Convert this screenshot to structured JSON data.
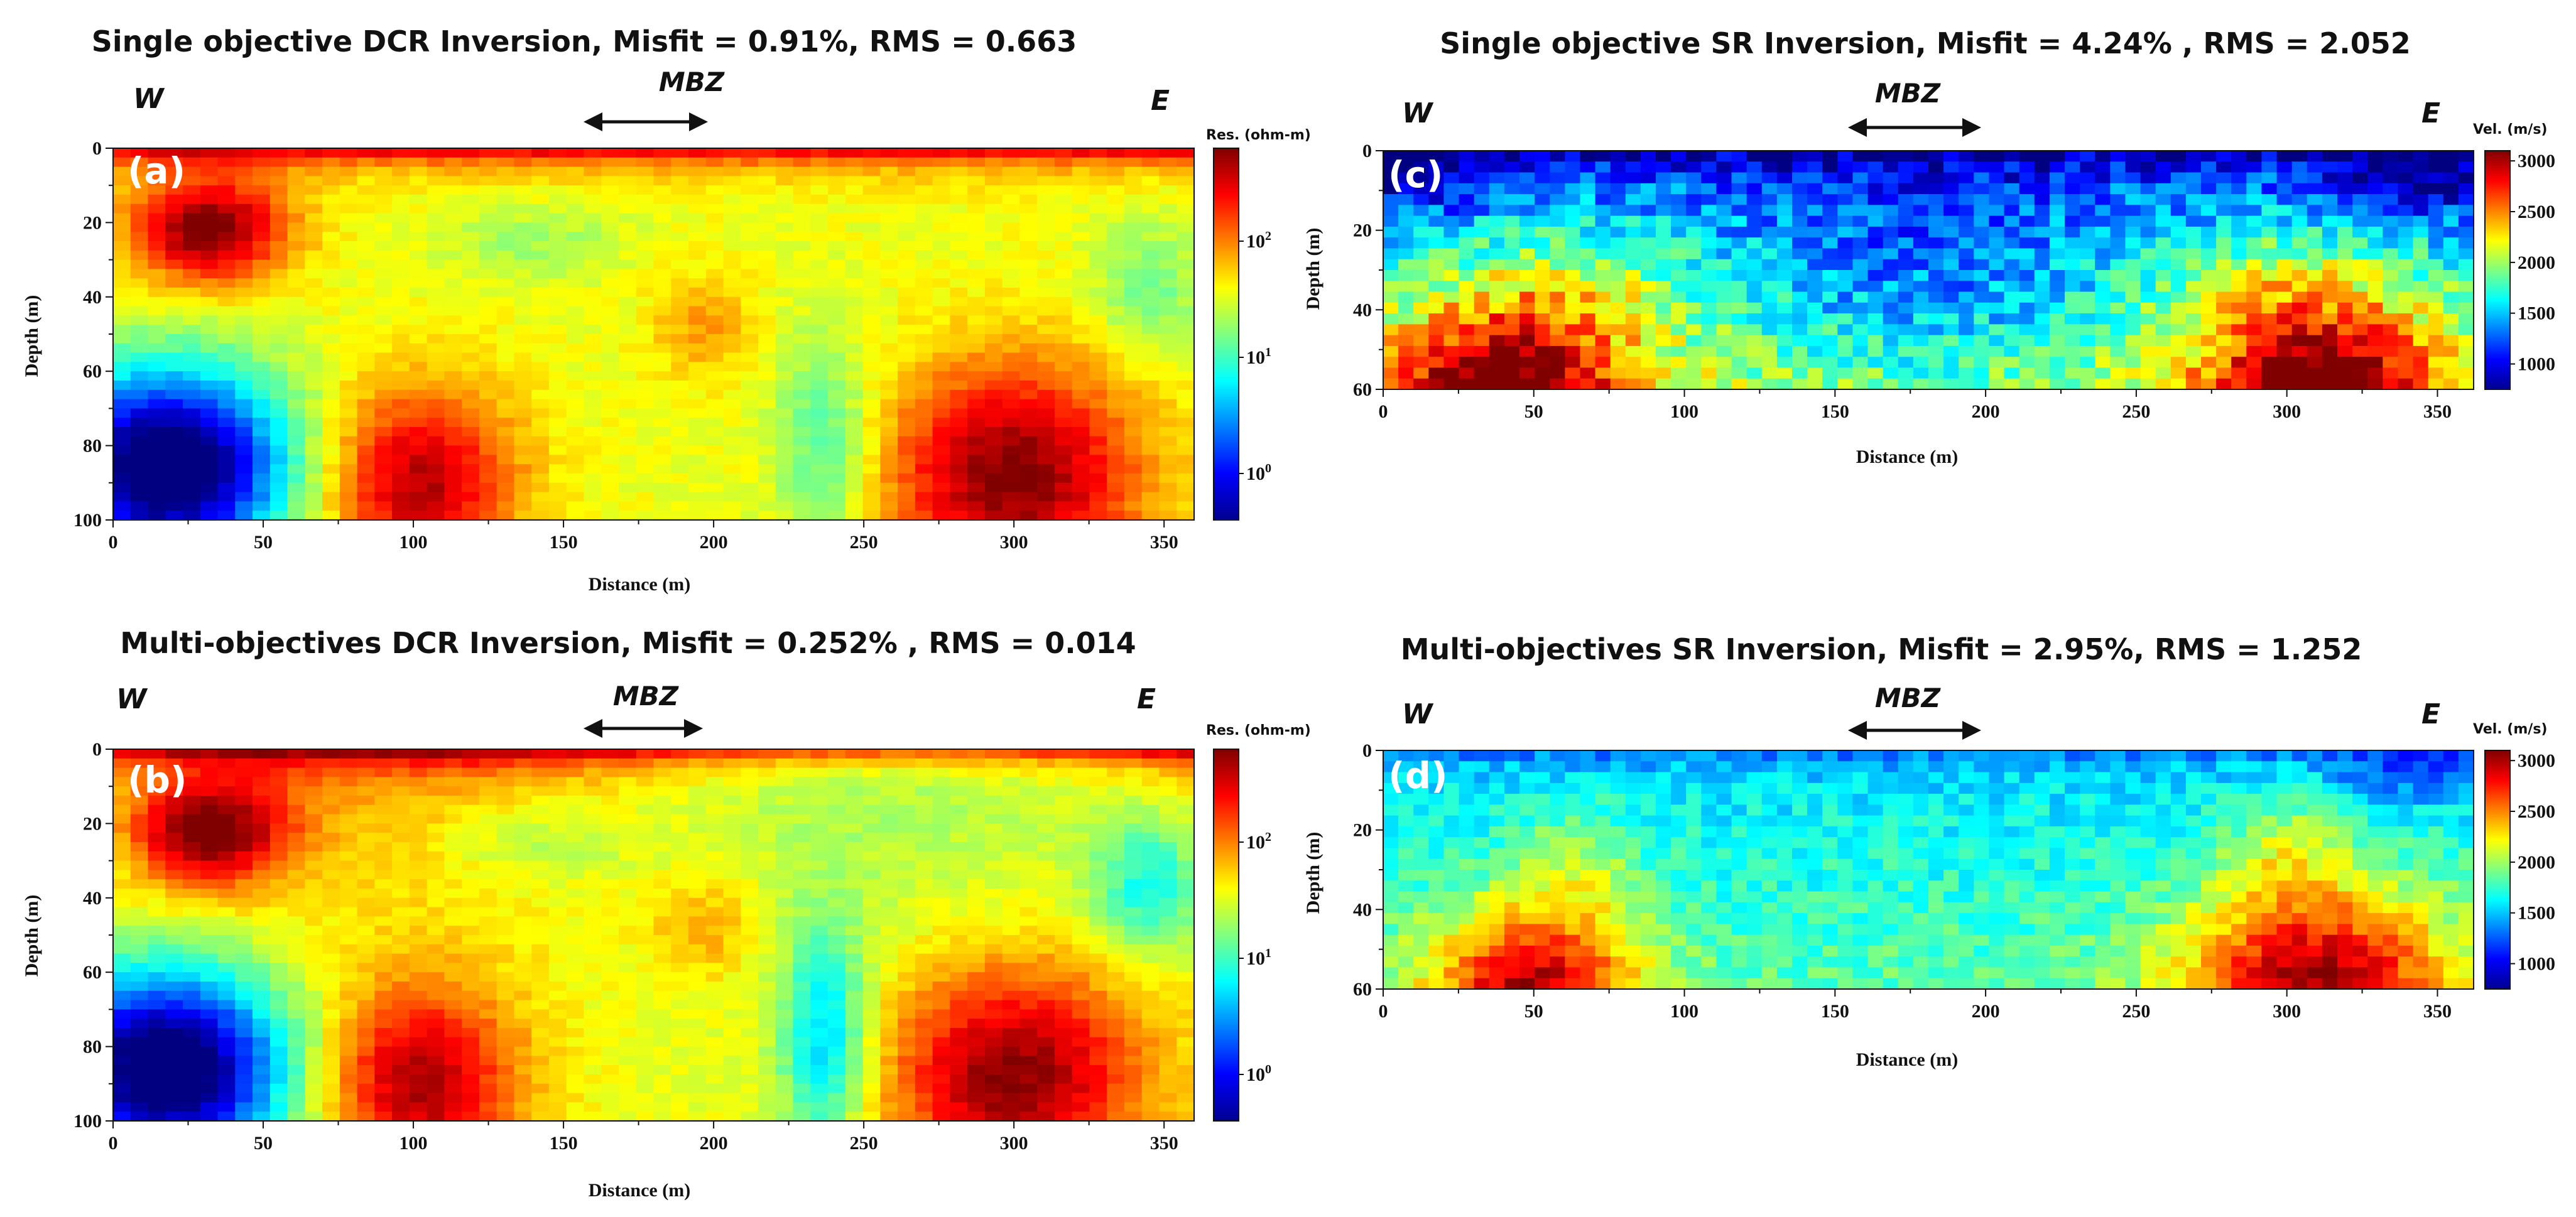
{
  "chart_data": [
    {
      "id": "a",
      "type": "heatmap",
      "title": "Single objective DCR Inversion, Misfit = 0.91%, RMS = 0.663",
      "panel_label": "(a)",
      "west_label": "W",
      "east_label": "E",
      "marker_label": "MBZ",
      "marker_range": [
        157,
        193
      ],
      "xlabel": "Distance (m)",
      "ylabel": "Depth (m)",
      "xlim": [
        0,
        360
      ],
      "ylim": [
        0,
        100
      ],
      "xticks": [
        "0",
        "50",
        "100",
        "150",
        "200",
        "250",
        "300",
        "350"
      ],
      "yticks": [
        "0",
        "20",
        "40",
        "60",
        "80",
        "100"
      ],
      "colorbar_title": "Res. (ohm-m)",
      "colorbar_ticks": [
        {
          "label": "10",
          "exp": "2",
          "value": 2
        },
        {
          "label": "10",
          "exp": "1",
          "value": 1
        },
        {
          "label": "10",
          "exp": "0",
          "value": 0
        }
      ],
      "colorbar_range": [
        -0.4,
        2.8
      ],
      "scale": "log10 resistivity",
      "features": [
        {
          "name": "shallow conductive-resistive cap",
          "x": [
            0,
            360
          ],
          "depth": [
            0,
            6
          ],
          "value": 2.6
        },
        {
          "name": "shallow resistor west",
          "x": [
            30,
            30
          ],
          "depth": [
            22,
            22
          ],
          "value": 2.8
        },
        {
          "name": "deep conductor west",
          "x": [
            20,
            20
          ],
          "depth": [
            85,
            85
          ],
          "value": -0.4
        },
        {
          "name": "deep resistor",
          "x": [
            100,
            100
          ],
          "depth": [
            88,
            88
          ],
          "value": 2.6
        },
        {
          "name": "deep resistor",
          "x": [
            300,
            300
          ],
          "depth": [
            88,
            88
          ],
          "value": 2.8
        },
        {
          "name": "moderate body under MBZ",
          "x": [
            195,
            195
          ],
          "depth": [
            50,
            50
          ],
          "value": 1.9
        },
        {
          "name": "low zone",
          "x": [
            235,
            235
          ],
          "depth": [
            80,
            80
          ],
          "value": 0.9
        }
      ]
    },
    {
      "id": "b",
      "type": "heatmap",
      "title": "Multi-objectives DCR Inversion, Misfit = 0.252% , RMS = 0.014",
      "panel_label": "(b)",
      "west_label": "W",
      "east_label": "E",
      "marker_label": "MBZ",
      "marker_range": [
        157,
        193
      ],
      "xlabel": "Distance (m)",
      "ylabel": "Depth (m)",
      "xlim": [
        0,
        360
      ],
      "ylim": [
        0,
        100
      ],
      "xticks": [
        "0",
        "50",
        "100",
        "150",
        "200",
        "250",
        "300",
        "350"
      ],
      "yticks": [
        "0",
        "20",
        "40",
        "60",
        "80",
        "100"
      ],
      "colorbar_title": "Res. (ohm-m)",
      "colorbar_ticks": [
        {
          "label": "10",
          "exp": "2",
          "value": 2
        },
        {
          "label": "10",
          "exp": "1",
          "value": 1
        },
        {
          "label": "10",
          "exp": "0",
          "value": 0
        }
      ],
      "colorbar_range": [
        -0.4,
        2.8
      ],
      "scale": "log10 resistivity",
      "features": [
        {
          "name": "shallow cap",
          "x": [
            0,
            360
          ],
          "depth": [
            0,
            6
          ],
          "value": 2.6
        },
        {
          "name": "shallow resistor west",
          "x": [
            32,
            32
          ],
          "depth": [
            20,
            20
          ],
          "value": 2.9
        },
        {
          "name": "deep conductor west",
          "x": [
            22,
            22
          ],
          "depth": [
            82,
            82
          ],
          "value": -0.5
        },
        {
          "name": "deep resistor",
          "x": [
            105,
            105
          ],
          "depth": [
            85,
            85
          ],
          "value": 2.6
        },
        {
          "name": "deep resistor",
          "x": [
            300,
            300
          ],
          "depth": [
            85,
            85
          ],
          "value": 2.9
        },
        {
          "name": "moderate body under MBZ",
          "x": [
            200,
            200
          ],
          "depth": [
            48,
            48
          ],
          "value": 1.8
        },
        {
          "name": "low zone",
          "x": [
            237,
            237
          ],
          "depth": [
            80,
            80
          ],
          "value": 0.6
        },
        {
          "name": "low zone east",
          "x": [
            340,
            340
          ],
          "depth": [
            35,
            35
          ],
          "value": 0.7
        }
      ]
    },
    {
      "id": "c",
      "type": "heatmap",
      "title": "Single objective SR Inversion, Misfit = 4.24% , RMS = 2.052",
      "panel_label": "(c)",
      "west_label": "W",
      "east_label": "E",
      "marker_label": "MBZ",
      "marker_range": [
        157,
        193
      ],
      "xlabel": "Distance (m)",
      "ylabel": "Depth (m)",
      "xlim": [
        0,
        362
      ],
      "ylim": [
        0,
        60
      ],
      "xticks": [
        "0",
        "50",
        "100",
        "150",
        "200",
        "250",
        "300",
        "350"
      ],
      "yticks": [
        "0",
        "20",
        "40",
        "60"
      ],
      "colorbar_title": "Vel. (m/s)",
      "colorbar_ticks": [
        {
          "label": "3000",
          "value": 3000
        },
        {
          "label": "2500",
          "value": 2500
        },
        {
          "label": "2000",
          "value": 2000
        },
        {
          "label": "1500",
          "value": 1500
        },
        {
          "label": "1000",
          "value": 1000
        }
      ],
      "colorbar_range": [
        750,
        3100
      ],
      "scale": "P-wave velocity (m/s)",
      "features": [
        {
          "name": "low-velocity near surface",
          "x": [
            0,
            362
          ],
          "depth": [
            0,
            8
          ],
          "value": 900
        },
        {
          "name": "high velocity west",
          "x": [
            40,
            40
          ],
          "depth": [
            55,
            55
          ],
          "value": 2900
        },
        {
          "name": "high velocity east",
          "x": [
            310,
            310
          ],
          "depth": [
            55,
            55
          ],
          "value": 2950
        },
        {
          "name": "low-velocity MBZ zone",
          "x": [
            180,
            180
          ],
          "depth": [
            35,
            35
          ],
          "value": 1150
        }
      ]
    },
    {
      "id": "d",
      "type": "heatmap",
      "title": "Multi-objectives SR Inversion, Misfit = 2.95%, RMS = 1.252",
      "panel_label": "(d)",
      "west_label": "W",
      "east_label": "E",
      "marker_label": "MBZ",
      "marker_range": [
        157,
        193
      ],
      "xlabel": "Distance (m)",
      "ylabel": "Depth (m)",
      "xlim": [
        0,
        362
      ],
      "ylim": [
        0,
        60
      ],
      "xticks": [
        "0",
        "50",
        "100",
        "150",
        "200",
        "250",
        "300",
        "350"
      ],
      "yticks": [
        "0",
        "20",
        "40",
        "60"
      ],
      "colorbar_title": "Vel. (m/s)",
      "colorbar_ticks": [
        {
          "label": "3000",
          "value": 3000
        },
        {
          "label": "2500",
          "value": 2500
        },
        {
          "label": "2000",
          "value": 2000
        },
        {
          "label": "1500",
          "value": 1500
        },
        {
          "label": "1000",
          "value": 1000
        }
      ],
      "colorbar_range": [
        750,
        3100
      ],
      "scale": "P-wave velocity (m/s)",
      "features": [
        {
          "name": "near surface",
          "x": [
            0,
            362
          ],
          "depth": [
            0,
            6
          ],
          "value": 1200
        },
        {
          "name": "high velocity west",
          "x": [
            50,
            50
          ],
          "depth": [
            52,
            52
          ],
          "value": 2800
        },
        {
          "name": "high velocity east",
          "x": [
            310,
            310
          ],
          "depth": [
            50,
            50
          ],
          "value": 2850
        },
        {
          "name": "moderate central zone",
          "x": [
            180,
            180
          ],
          "depth": [
            35,
            35
          ],
          "value": 1550
        }
      ]
    }
  ]
}
